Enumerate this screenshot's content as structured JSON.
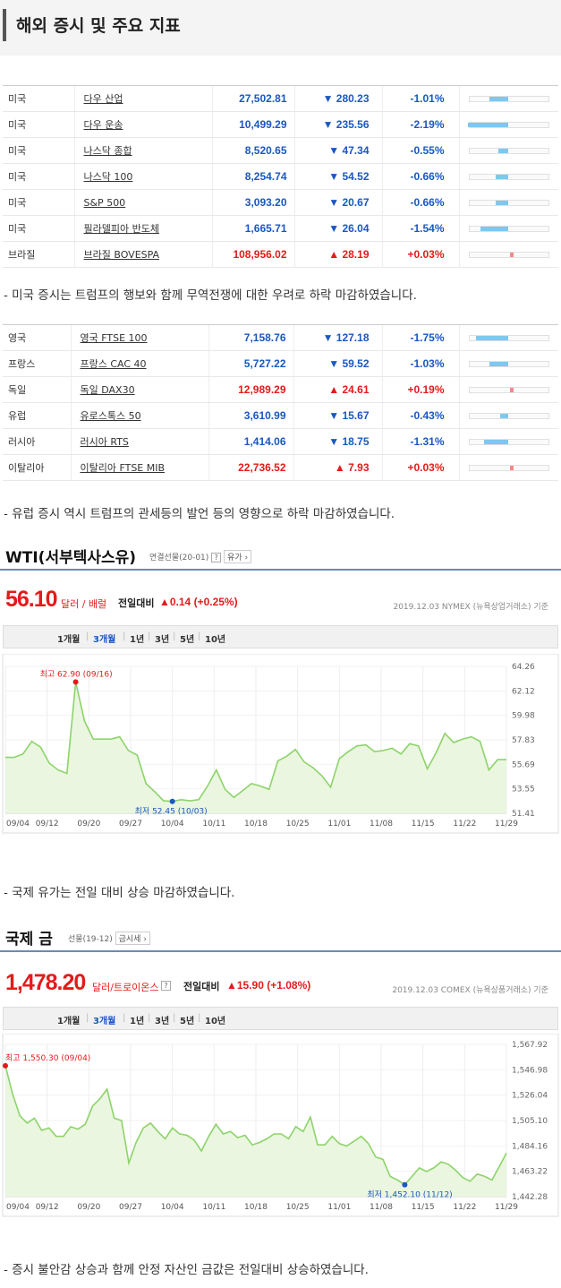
{
  "header": {
    "title": "해외 증시 및 주요 지표"
  },
  "us_table": [
    {
      "country": "미국",
      "name": "다우 산업",
      "price": "27,502.81",
      "change": "▼ 280.23",
      "pct": "-1.01%",
      "dir": "down",
      "bar": 0.46
    },
    {
      "country": "미국",
      "name": "다우 운송",
      "price": "10,499.29",
      "change": "▼ 235.56",
      "pct": "-2.19%",
      "dir": "down",
      "bar": 1.0
    },
    {
      "country": "미국",
      "name": "나스닥 종합",
      "price": "8,520.65",
      "change": "▼ 47.34",
      "pct": "-0.55%",
      "dir": "down",
      "bar": 0.25
    },
    {
      "country": "미국",
      "name": "나스닥 100",
      "price": "8,254.74",
      "change": "▼ 54.52",
      "pct": "-0.66%",
      "dir": "down",
      "bar": 0.3
    },
    {
      "country": "미국",
      "name": "S&P 500",
      "price": "3,093.20",
      "change": "▼ 20.67",
      "pct": "-0.66%",
      "dir": "down",
      "bar": 0.3
    },
    {
      "country": "미국",
      "name": "필라델피아 반도체",
      "price": "1,665.71",
      "change": "▼ 26.04",
      "pct": "-1.54%",
      "dir": "down",
      "bar": 0.7
    },
    {
      "country": "브라질",
      "name": "브라질 BOVESPA",
      "price": "108,956.02",
      "change": "▲ 28.19",
      "pct": "+0.03%",
      "dir": "up",
      "bar": 0.03
    }
  ],
  "note1": "- 미국 증시는 트럼프의 행보와 함께 무역전쟁에 대한 우려로 하락 마감하였습니다.",
  "eu_table": [
    {
      "country": "영국",
      "name": "영국 FTSE 100",
      "price": "7,158.76",
      "change": "▼ 127.18",
      "pct": "-1.75%",
      "dir": "down",
      "bar": 0.8
    },
    {
      "country": "프랑스",
      "name": "프랑스 CAC 40",
      "price": "5,727.22",
      "change": "▼ 59.52",
      "pct": "-1.03%",
      "dir": "down",
      "bar": 0.47
    },
    {
      "country": "독일",
      "name": "독일 DAX30",
      "price": "12,989.29",
      "change": "▲ 24.61",
      "pct": "+0.19%",
      "dir": "up",
      "bar": 0.09
    },
    {
      "country": "유럽",
      "name": "유로스톡스 50",
      "price": "3,610.99",
      "change": "▼ 15.67",
      "pct": "-0.43%",
      "dir": "down",
      "bar": 0.2
    },
    {
      "country": "러시아",
      "name": "러시아 RTS",
      "price": "1,414.06",
      "change": "▼ 18.75",
      "pct": "-1.31%",
      "dir": "down",
      "bar": 0.6
    },
    {
      "country": "이탈리아",
      "name": "이탈리아 FTSE MIB",
      "price": "22,736.52",
      "change": "▲ 7.93",
      "pct": "+0.03%",
      "dir": "up",
      "bar": 0.03
    }
  ],
  "note2": "- 유럽 증시 역시 트럼프의 관세등의 발언 등의 영향으로 하락 마감하였습니다.",
  "wti": {
    "title": "WTI(서부텍사스유)",
    "subtitle": "연결선물(20-01)",
    "tag": "유가",
    "price": "56.10",
    "unit": "달러 / 배럴",
    "diff_label": "전일대비",
    "diff": "▲0.14 (+0.25%)",
    "source": "2019.12.03  NYMEX (뉴욕상업거래소) 기준",
    "periods": [
      "1개월",
      "3개월",
      "1년",
      "3년",
      "5년",
      "10년"
    ],
    "selected_period": "3개월",
    "high_label": "최고 62.90 (09/16)",
    "low_label": "최저 52.45 (10/03)"
  },
  "note3": "- 국제 유가는 전일 대비 상승 마감하였습니다.",
  "gold": {
    "title": "국제 금",
    "subtitle": "선물(19-12)",
    "tag": "금시세",
    "price": "1,478.20",
    "unit": "달러/트로이온스",
    "diff_label": "전일대비",
    "diff": "▲15.90 (+1.08%)",
    "source": "2019.12.03  COMEX (뉴욕상품거래소) 기준",
    "periods": [
      "1개월",
      "3개월",
      "1년",
      "3년",
      "5년",
      "10년"
    ],
    "selected_period": "3개월",
    "high_label": "최고 1,550.30 (09/04)",
    "low_label": "최저 1,452.10 (11/12)"
  },
  "note4": "- 증시 불안감 상승과 함께 안정 자산인 금값은 전일대비 상승하였습니다.",
  "chart_data": [
    {
      "type": "area",
      "title": "WTI(서부텍사스유)",
      "x_ticks": [
        "09/04",
        "09/12",
        "09/20",
        "09/27",
        "10/04",
        "10/11",
        "10/18",
        "10/25",
        "11/01",
        "11/08",
        "11/15",
        "11/22",
        "11/29"
      ],
      "y_ticks": [
        "64.26",
        "62.12",
        "59.98",
        "57.83",
        "55.69",
        "53.55",
        "51.41"
      ],
      "ylim": [
        51.41,
        64.26
      ],
      "values": [
        56.3,
        56.3,
        56.6,
        57.7,
        57.2,
        55.8,
        55.2,
        54.9,
        62.9,
        59.5,
        57.9,
        57.9,
        57.9,
        58.1,
        56.9,
        56.5,
        54.0,
        53.3,
        52.5,
        52.45,
        52.6,
        52.5,
        52.6,
        53.8,
        55.2,
        53.5,
        52.8,
        53.4,
        54.0,
        53.8,
        53.5,
        56.0,
        56.4,
        57.0,
        55.9,
        55.4,
        54.7,
        53.7,
        56.2,
        56.8,
        57.3,
        57.4,
        56.8,
        56.9,
        57.1,
        56.6,
        57.5,
        57.3,
        55.3,
        56.7,
        58.4,
        57.6,
        57.9,
        58.1,
        57.7,
        55.2,
        56.1,
        56.1
      ]
    },
    {
      "type": "area",
      "title": "국제 금",
      "x_ticks": [
        "09/04",
        "09/12",
        "09/20",
        "09/27",
        "10/04",
        "10/11",
        "10/18",
        "10/25",
        "11/01",
        "11/08",
        "11/15",
        "11/22",
        "11/29"
      ],
      "y_ticks": [
        "1,567.92",
        "1,546.98",
        "1,526.04",
        "1,505.10",
        "1,484.16",
        "1,463.22",
        "1,442.28"
      ],
      "ylim": [
        1442.28,
        1567.92
      ],
      "values": [
        1550.3,
        1527,
        1509,
        1503,
        1507,
        1497,
        1499,
        1492,
        1492,
        1500,
        1498,
        1502,
        1517,
        1523,
        1531,
        1507,
        1505,
        1470,
        1487,
        1499,
        1503,
        1496,
        1490,
        1499,
        1494,
        1493,
        1489,
        1480,
        1492,
        1502,
        1494,
        1496,
        1491,
        1493,
        1485,
        1487,
        1490,
        1494,
        1494,
        1490,
        1500,
        1496,
        1508,
        1485,
        1485,
        1492,
        1486,
        1484,
        1488,
        1492,
        1486,
        1475,
        1473,
        1459,
        1456,
        1452.1,
        1459,
        1466,
        1463,
        1466,
        1471,
        1469,
        1464,
        1458,
        1455,
        1461,
        1459,
        1456,
        1467,
        1478.2
      ]
    }
  ]
}
